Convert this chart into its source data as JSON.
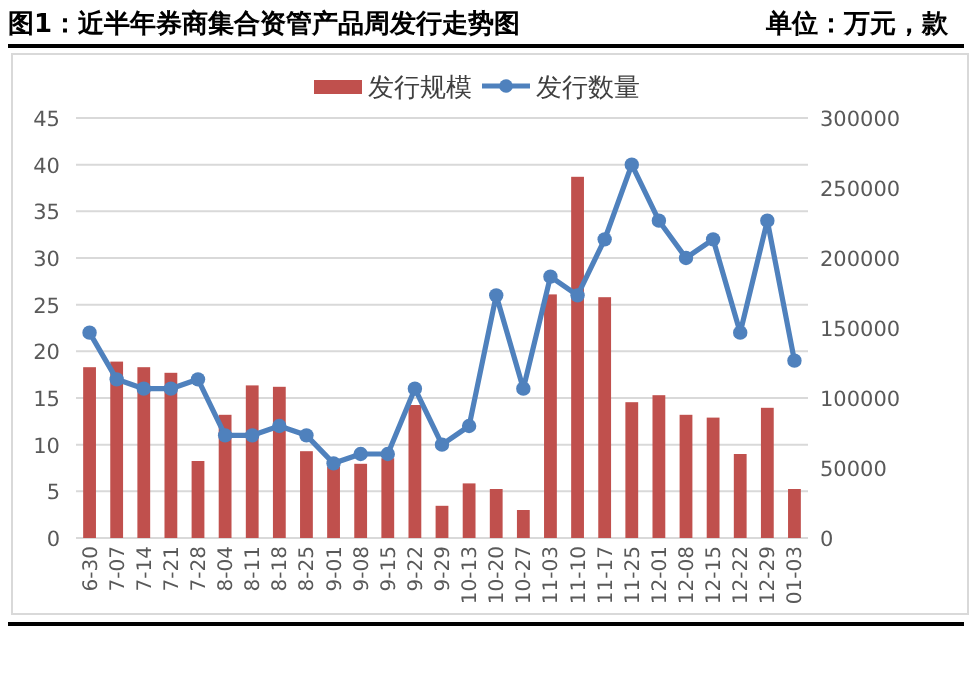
{
  "chart_data": {
    "type": "bar",
    "title": "图1：近半年券商集合资管产品周发行走势图",
    "subtitle": "单位：万元，款",
    "categories": [
      "6-30",
      "7-07",
      "7-14",
      "7-21",
      "7-28",
      "8-04",
      "8-11",
      "8-18",
      "8-25",
      "9-01",
      "9-08",
      "9-15",
      "9-22",
      "9-29",
      "10-13",
      "10-20",
      "10-27",
      "11-03",
      "11-10",
      "11-17",
      "11-25",
      "12-01",
      "12-08",
      "12-15",
      "12-22",
      "12-29",
      "01-03"
    ],
    "series": [
      {
        "name": "发行规模",
        "axis": "y2",
        "color": "#c0504d",
        "values": [
          122000,
          126000,
          122000,
          118000,
          55000,
          88000,
          109000,
          108000,
          62000,
          51000,
          53000,
          57000,
          95000,
          23000,
          39000,
          35000,
          20000,
          174000,
          258000,
          172000,
          97000,
          102000,
          88000,
          86000,
          60000,
          93000,
          35000
        ]
      },
      {
        "name": "发行数量",
        "type": "line",
        "color": "#4f81bd",
        "values": [
          22,
          17,
          16,
          16,
          17,
          11,
          11,
          12,
          11,
          8,
          9,
          9,
          16,
          10,
          12,
          26,
          16,
          28,
          26,
          32,
          40,
          34,
          30,
          32,
          22,
          34,
          19
        ]
      }
    ],
    "ylim": [
      0,
      45
    ],
    "yticks": [
      0,
      5,
      10,
      15,
      20,
      25,
      30,
      35,
      40,
      45
    ],
    "y2lim": [
      0,
      300000
    ],
    "y2ticks": [
      0,
      50000,
      100000,
      150000,
      200000,
      250000,
      300000
    ],
    "grid": "y",
    "legend": "top",
    "marker": "circle",
    "line_style": "solid"
  }
}
